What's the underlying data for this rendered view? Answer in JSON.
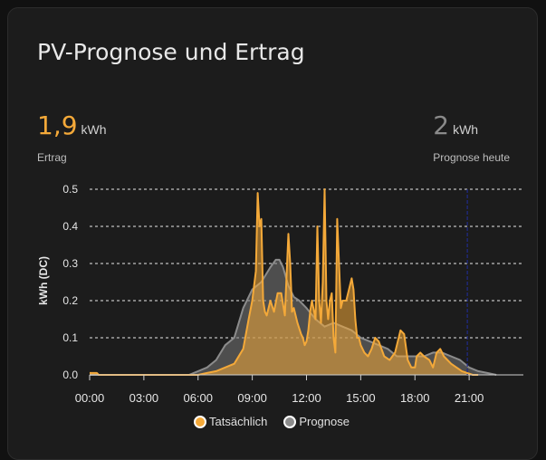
{
  "card": {
    "title": "PV-Prognose und Ertrag"
  },
  "stats": {
    "actual": {
      "value": "1,9",
      "unit": "kWh",
      "label": "Ertrag"
    },
    "forecast": {
      "value": "2",
      "unit": "kWh",
      "label": "Prognose heute"
    }
  },
  "colors": {
    "actual": "#f4a939",
    "forecast": "#8c8c8c",
    "now_line": "#1f2a8a"
  },
  "chart_data": {
    "type": "area",
    "ylabel": "kWh (DC)",
    "xlabel": "",
    "xlim": [
      0,
      24
    ],
    "ylim": [
      0,
      0.5
    ],
    "yticks": [
      "0.0",
      "0.1",
      "0.2",
      "0.3",
      "0.4",
      "0.5"
    ],
    "xticks": [
      "00:00",
      "03:00",
      "06:00",
      "09:00",
      "12:00",
      "15:00",
      "18:00",
      "21:00"
    ],
    "grid": true,
    "legend_position": "bottom",
    "now_marker_hour": 21,
    "series": [
      {
        "name": "Tatsächlich",
        "x": [
          0,
          0.4,
          0.5,
          6.0,
          6.5,
          7.0,
          7.5,
          8.0,
          8.5,
          8.8,
          9.0,
          9.2,
          9.3,
          9.4,
          9.5,
          9.6,
          9.7,
          9.8,
          10.0,
          10.2,
          10.4,
          10.6,
          10.8,
          11.0,
          11.1,
          11.2,
          11.3,
          11.5,
          11.7,
          11.8,
          11.9,
          12.0,
          12.1,
          12.2,
          12.3,
          12.5,
          12.6,
          12.7,
          12.8,
          12.9,
          13.0,
          13.1,
          13.2,
          13.3,
          13.4,
          13.5,
          13.6,
          13.7,
          13.8,
          13.9,
          14.0,
          14.2,
          14.4,
          14.5,
          14.6,
          14.7,
          14.8,
          14.9,
          15.0,
          15.2,
          15.4,
          15.6,
          15.8,
          16.0,
          16.3,
          16.6,
          16.9,
          17.2,
          17.4,
          17.6,
          17.8,
          18.0,
          18.1,
          18.3,
          18.5,
          18.8,
          19.0,
          19.2,
          19.4,
          19.6,
          19.8,
          20.0,
          20.3,
          20.6,
          20.9,
          21.2,
          21.5
        ],
        "values": [
          0.005,
          0.005,
          0,
          0,
          0.005,
          0.01,
          0.02,
          0.03,
          0.07,
          0.15,
          0.2,
          0.28,
          0.49,
          0.4,
          0.42,
          0.2,
          0.17,
          0.16,
          0.2,
          0.17,
          0.22,
          0.22,
          0.16,
          0.38,
          0.3,
          0.17,
          0.18,
          0.14,
          0.11,
          0.1,
          0.08,
          0.09,
          0.12,
          0.17,
          0.2,
          0.15,
          0.4,
          0.2,
          0.14,
          0.25,
          0.5,
          0.2,
          0.15,
          0.2,
          0.22,
          0.1,
          0.06,
          0.42,
          0.3,
          0.18,
          0.2,
          0.2,
          0.24,
          0.26,
          0.23,
          0.15,
          0.1,
          0.1,
          0.08,
          0.06,
          0.05,
          0.07,
          0.1,
          0.09,
          0.05,
          0.04,
          0.06,
          0.12,
          0.11,
          0.04,
          0.02,
          0.02,
          0.05,
          0.06,
          0.05,
          0.04,
          0.02,
          0.06,
          0.07,
          0.05,
          0.04,
          0.03,
          0.02,
          0.01,
          0.005,
          0,
          0
        ]
      },
      {
        "name": "Prognose",
        "x": [
          0,
          5.5,
          6.0,
          6.5,
          7.0,
          7.5,
          8.0,
          8.5,
          9.0,
          9.5,
          10.0,
          10.3,
          10.5,
          10.7,
          11.0,
          11.3,
          11.6,
          12.0,
          12.5,
          13.0,
          13.5,
          14.0,
          14.5,
          15.0,
          15.5,
          16.0,
          16.5,
          17.0,
          17.5,
          18.0,
          18.5,
          19.0,
          19.5,
          20.0,
          20.5,
          21.0,
          21.5,
          22.0,
          22.5
        ],
        "values": [
          0,
          0,
          0.01,
          0.02,
          0.04,
          0.08,
          0.1,
          0.18,
          0.23,
          0.25,
          0.29,
          0.31,
          0.31,
          0.29,
          0.24,
          0.21,
          0.2,
          0.18,
          0.15,
          0.13,
          0.14,
          0.13,
          0.12,
          0.1,
          0.09,
          0.08,
          0.07,
          0.05,
          0.05,
          0.05,
          0.05,
          0.06,
          0.06,
          0.05,
          0.04,
          0.02,
          0.01,
          0.005,
          0
        ]
      }
    ]
  }
}
